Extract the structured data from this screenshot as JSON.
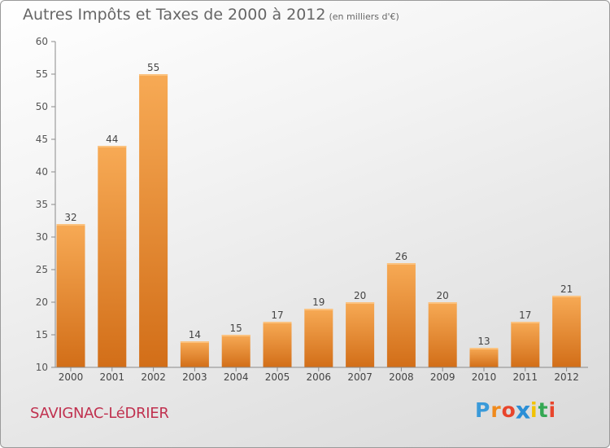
{
  "chart_data": {
    "type": "bar",
    "title": "Autres Impôts et Taxes de 2000 à 2012",
    "subtitle": "(en milliers d'€)",
    "xlabel": "",
    "ylabel": "",
    "categories": [
      "2000",
      "2001",
      "2002",
      "2003",
      "2004",
      "2005",
      "2006",
      "2007",
      "2008",
      "2009",
      "2010",
      "2011",
      "2012"
    ],
    "values": [
      32,
      44,
      55,
      14,
      15,
      17,
      19,
      20,
      26,
      20,
      13,
      17,
      21
    ],
    "ylim": [
      10,
      60
    ],
    "yticks": [
      10,
      15,
      20,
      25,
      30,
      35,
      40,
      45,
      50,
      55,
      60
    ],
    "grid": false,
    "legend": "none",
    "bar_color": "#f0a050"
  },
  "footer": {
    "commune": "SAVIGNAC-LéDRIER",
    "logo_letters": [
      "P",
      "r",
      "o",
      "x",
      "i",
      "t",
      "i"
    ],
    "logo_colors": [
      "#3a9ad9",
      "#f08a1c",
      "#e8452c",
      "#2b8fd6",
      "#f2c200",
      "#34a853",
      "#e8452c"
    ]
  }
}
